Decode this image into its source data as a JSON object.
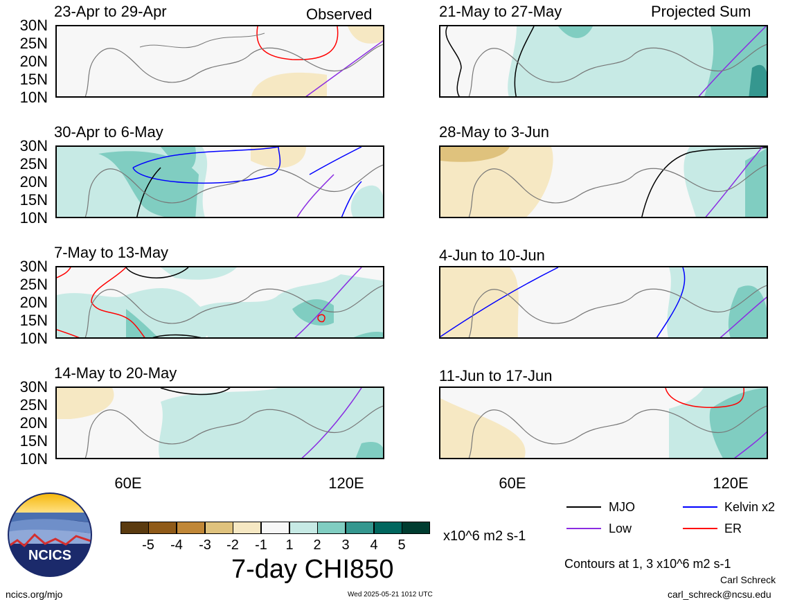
{
  "panels_left": [
    {
      "date": "23-Apr to 29-Apr",
      "tag": "Observed"
    },
    {
      "date": "30-Apr to 6-May",
      "tag": ""
    },
    {
      "date": "7-May to 13-May",
      "tag": ""
    },
    {
      "date": "14-May to 20-May",
      "tag": ""
    }
  ],
  "panels_right": [
    {
      "date": "21-May to 27-May",
      "tag": "Projected Sum"
    },
    {
      "date": "28-May to 3-Jun",
      "tag": ""
    },
    {
      "date": "4-Jun to 10-Jun",
      "tag": ""
    },
    {
      "date": "11-Jun to 17-Jun",
      "tag": ""
    }
  ],
  "lat_labels": [
    "30N",
    "25N",
    "20N",
    "15N",
    "10N"
  ],
  "lon_labels": [
    "60E",
    "120E"
  ],
  "colorbar": {
    "ticks": [
      "-5",
      "-4",
      "-3",
      "-2",
      "-1",
      "1",
      "2",
      "3",
      "4",
      "5"
    ],
    "units": "x10^6 m2 s-1",
    "colors": [
      "#5a3a0f",
      "#8f5a18",
      "#c08737",
      "#dfc27d",
      "#f6e8c3",
      "#f7f7f7",
      "#c7eae5",
      "#80cdc1",
      "#35978f",
      "#01665e",
      "#003c30"
    ],
    "title": "7-day CHI850"
  },
  "legend": [
    {
      "label": "MJO",
      "color": "#000000"
    },
    {
      "label": "Kelvin x2",
      "color": "#0000ff"
    },
    {
      "label": "Low",
      "color": "#8a2be2"
    },
    {
      "label": "ER",
      "color": "#ff0000"
    }
  ],
  "contours_note": "Contours at 1, 3 x10^6 m2 s-1",
  "author": "Carl Schreck",
  "email": "carl_schreck@ncsu.edu",
  "site": "ncics.org/mjo",
  "timestamp": "Wed 2025-05-21 1012 UTC",
  "logo_text": "NCICS"
}
